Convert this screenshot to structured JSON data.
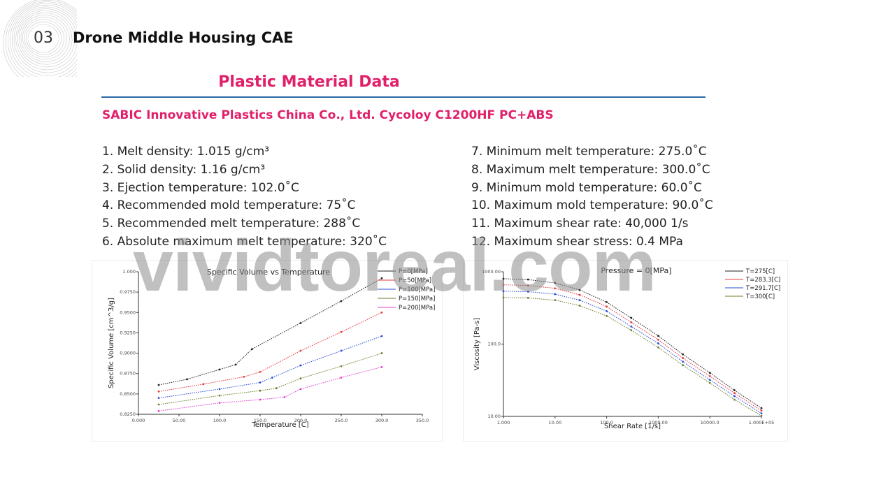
{
  "section": {
    "number": "03",
    "title": "Drone Middle Housing CAE"
  },
  "main_title": "Plastic Material Data",
  "subtitle": "SABIC Innovative Plastics China Co., Ltd. Cycoloy C1200HF PC+ABS",
  "properties_left": [
    "1. Melt density: 1.015 g/cm³",
    "2. Solid density: 1.16 g/cm³",
    "3. Ejection temperature: 102.0˚C",
    "4. Recommended mold temperature: 75˚C",
    "5. Recommended melt temperature: 288˚C",
    "6. Absolute maximum melt temperature: 320˚C"
  ],
  "properties_right": [
    "7. Minimum melt temperature: 275.0˚C",
    "8. Maximum melt temperature: 300.0˚C",
    "9. Minimum mold temperature: 60.0˚C",
    "10. Maximum mold temperature: 90.0˚C",
    "11. Maximum shear rate: 40,000 1/s",
    "12. Maximum shear stress: 0.4 MPa"
  ],
  "watermark": "vividtoreal.com",
  "chart_data": [
    {
      "type": "line",
      "title": "Specific Volume vs Temperature",
      "xlabel": "Temperature [C]",
      "ylabel": "Specific Volume [cm^3/g]",
      "xlim": [
        0,
        350
      ],
      "ylim": [
        0.825,
        1.0
      ],
      "x_ticks": [
        "0.000",
        "50.00",
        "100.0",
        "150.0",
        "200.0",
        "250.0",
        "300.0",
        "350.0"
      ],
      "y_ticks": [
        "0.8250",
        "0.8500",
        "0.8750",
        "0.9000",
        "0.9250",
        "0.9500",
        "0.9750",
        "1.000"
      ],
      "legend_position": "top-right",
      "series": [
        {
          "name": "P=0[MPa]",
          "color": "#222222",
          "x": [
            25,
            60,
            100,
            120,
            140,
            200,
            250,
            300
          ],
          "y": [
            0.861,
            0.868,
            0.88,
            0.886,
            0.905,
            0.937,
            0.964,
            0.992
          ]
        },
        {
          "name": "P=50[MPa]",
          "color": "#e8383d",
          "x": [
            25,
            80,
            130,
            150,
            200,
            250,
            300
          ],
          "y": [
            0.853,
            0.862,
            0.871,
            0.877,
            0.903,
            0.926,
            0.95
          ]
        },
        {
          "name": "P=100[MPa]",
          "color": "#2a4fd6",
          "x": [
            25,
            100,
            150,
            165,
            200,
            250,
            300
          ],
          "y": [
            0.845,
            0.856,
            0.864,
            0.87,
            0.885,
            0.903,
            0.921
          ]
        },
        {
          "name": "P=150[MPa]",
          "color": "#6d7f2a",
          "x": [
            25,
            100,
            150,
            170,
            200,
            250,
            300
          ],
          "y": [
            0.837,
            0.848,
            0.854,
            0.857,
            0.869,
            0.884,
            0.9
          ]
        },
        {
          "name": "P=200[MPa]",
          "color": "#e040d0",
          "x": [
            25,
            100,
            150,
            180,
            200,
            250,
            300
          ],
          "y": [
            0.829,
            0.839,
            0.843,
            0.846,
            0.856,
            0.87,
            0.883
          ]
        }
      ]
    },
    {
      "type": "line",
      "title": "Pressure = 0[MPa]",
      "xlabel": "Shear Rate [1/s]",
      "ylabel": "Viscosity [Pa-s]",
      "x_scale": "log",
      "y_scale": "log",
      "xlim": [
        1,
        100000
      ],
      "ylim": [
        10,
        1000
      ],
      "x_ticks": [
        "1.000",
        "10.00",
        "100.0",
        "1000.00",
        "10000.0",
        "1.000E+05"
      ],
      "y_ticks": [
        "10.00",
        "100.0",
        "1000.00"
      ],
      "legend_position": "top-right",
      "series": [
        {
          "name": "T=275[C]",
          "color": "#222222",
          "x": [
            1,
            3,
            10,
            30,
            100,
            300,
            1000,
            3000,
            10000,
            30000,
            100000
          ],
          "y": [
            800,
            780,
            700,
            560,
            380,
            230,
            130,
            72,
            40,
            23,
            13
          ]
        },
        {
          "name": "T=283.3[C]",
          "color": "#e8383d",
          "x": [
            1,
            3,
            10,
            30,
            100,
            300,
            1000,
            3000,
            10000,
            30000,
            100000
          ],
          "y": [
            660,
            645,
            590,
            480,
            330,
            200,
            115,
            64,
            36,
            21,
            12
          ]
        },
        {
          "name": "T=291.7[C]",
          "color": "#2a4fd6",
          "x": [
            1,
            3,
            10,
            30,
            100,
            300,
            1000,
            3000,
            10000,
            30000,
            100000
          ],
          "y": [
            540,
            530,
            490,
            405,
            285,
            175,
            102,
            57,
            32,
            19,
            11
          ]
        },
        {
          "name": "T=300[C]",
          "color": "#6d7f2a",
          "x": [
            1,
            3,
            10,
            30,
            100,
            300,
            1000,
            3000,
            10000,
            30000,
            100000
          ],
          "y": [
            440,
            435,
            405,
            340,
            245,
            155,
            90,
            51,
            29,
            17,
            10.2
          ]
        }
      ]
    }
  ]
}
